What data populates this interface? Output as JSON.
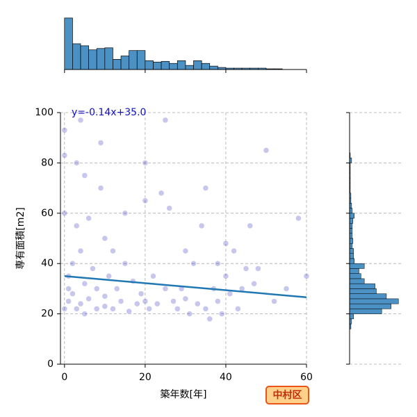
{
  "chart_data": {
    "type": "jointplot",
    "xlabel": "築年数[年]",
    "ylabel": "専有面積[m2]",
    "badge": "中村区",
    "xlim": [
      -1,
      60
    ],
    "ylim": [
      0,
      100
    ],
    "xticks": [
      0,
      20,
      40,
      60
    ],
    "yticks": [
      0,
      20,
      40,
      60,
      80,
      100
    ],
    "grid": true,
    "point_color": "#2020b8",
    "x": [
      0,
      0,
      0,
      0,
      1,
      1,
      1,
      2,
      2,
      3,
      3,
      4,
      4,
      5,
      5,
      6,
      6,
      7,
      8,
      8,
      9,
      10,
      10,
      11,
      12,
      12,
      13,
      14,
      15,
      16,
      17,
      18,
      19,
      20,
      20,
      21,
      22,
      23,
      24,
      25,
      26,
      27,
      28,
      29,
      30,
      31,
      32,
      33,
      34,
      35,
      36,
      37,
      38,
      38,
      39,
      40,
      41,
      42,
      43,
      44,
      45,
      46,
      47,
      48,
      50,
      52,
      55,
      58,
      60,
      4,
      5,
      9,
      15,
      20,
      25,
      30,
      35,
      40,
      3,
      10
    ],
    "y": [
      93,
      83,
      60,
      22,
      35,
      30,
      25,
      40,
      28,
      55,
      22,
      45,
      24,
      32,
      20,
      58,
      26,
      38,
      30,
      22,
      70,
      27,
      50,
      35,
      22,
      45,
      30,
      25,
      40,
      21,
      33,
      24,
      28,
      80,
      25,
      22,
      35,
      24,
      68,
      30,
      62,
      25,
      22,
      30,
      26,
      20,
      40,
      24,
      55,
      22,
      18,
      30,
      40,
      25,
      20,
      35,
      28,
      45,
      22,
      30,
      38,
      55,
      32,
      38,
      85,
      25,
      30,
      58,
      35,
      97,
      75,
      88,
      60,
      65,
      97,
      45,
      70,
      48,
      80,
      23
    ],
    "regression": {
      "label": "y=-0.14x+35.0",
      "color": "#1f77b4",
      "x": [
        0,
        60
      ],
      "y": [
        35,
        26.6
      ]
    },
    "hist_color": "#4c91c4",
    "top_hist": {
      "bins": [
        0,
        2,
        4,
        6,
        8,
        10,
        12,
        14,
        16,
        18,
        20,
        22,
        24,
        26,
        28,
        30,
        32,
        34,
        36,
        38,
        40,
        42,
        44,
        46,
        48,
        50,
        52,
        54,
        56,
        58
      ],
      "counts": [
        76,
        38,
        35,
        29,
        31,
        32,
        15,
        20,
        28,
        28,
        13,
        11,
        12,
        9,
        13,
        6,
        13,
        9,
        5,
        3,
        2,
        2,
        2,
        2,
        2,
        1,
        1,
        0,
        0
      ],
      "ylim": [
        0,
        80
      ]
    },
    "right_hist": {
      "bins": [
        14,
        16,
        18,
        20,
        22,
        24,
        26,
        28,
        30,
        32,
        34,
        36,
        38,
        40,
        42,
        44,
        46,
        48,
        50,
        52,
        54,
        56,
        58,
        60,
        62,
        64,
        66,
        68,
        70,
        72,
        74,
        76,
        78,
        80,
        82,
        84
      ],
      "counts": [
        2,
        3,
        6,
        48,
        62,
        73,
        55,
        40,
        38,
        22,
        17,
        14,
        22,
        7,
        6,
        6,
        4,
        5,
        4,
        4,
        4,
        5,
        7,
        4,
        3,
        2,
        2,
        1,
        1,
        1,
        1,
        1,
        1,
        3,
        1
      ],
      "xlim": [
        0,
        80
      ]
    }
  }
}
